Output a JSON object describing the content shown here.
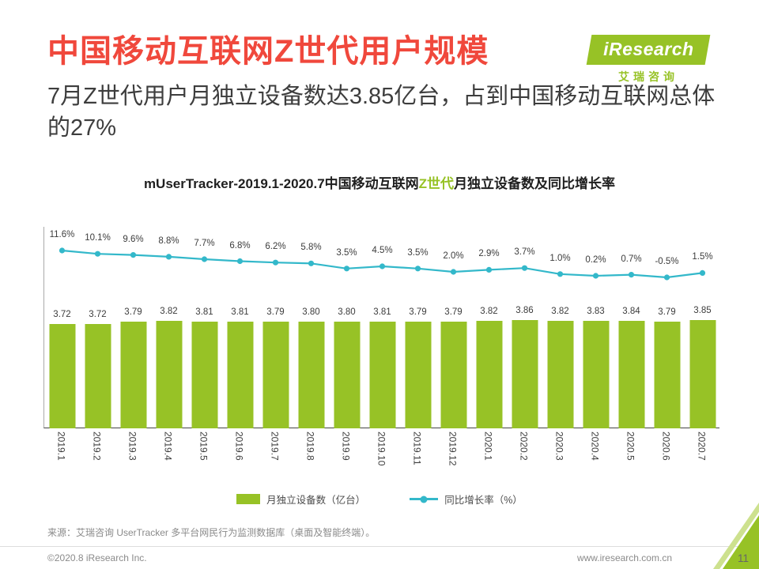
{
  "header": {
    "title": "中国移动互联网Z世代用户规模",
    "subtitle": "7月Z世代用户月独立设备数达3.85亿台，占到中国移动互联网总体的27%"
  },
  "logo": {
    "name": "iResearch",
    "cn": "艾瑞咨询"
  },
  "colors": {
    "title_red": "#F0483C",
    "bar_green": "#97C226",
    "line_teal": "#33B8CA"
  },
  "chart_data": {
    "type": "bar",
    "subtype": "bar+line combo",
    "title_prefix": "mUserTracker-2019.1-2020.7中国移动互联网",
    "title_highlight": "Z世代",
    "title_suffix": "月独立设备数及同比增长率",
    "categories": [
      "2019.1",
      "2019.2",
      "2019.3",
      "2019.4",
      "2019.5",
      "2019.6",
      "2019.7",
      "2019.8",
      "2019.9",
      "2019.10",
      "2019.11",
      "2019.12",
      "2020.1",
      "2020.2",
      "2020.3",
      "2020.4",
      "2020.5",
      "2020.6",
      "2020.7"
    ],
    "series": [
      {
        "name": "月独立设备数（亿台）",
        "type": "bar",
        "color": "#97C226",
        "values": [
          3.72,
          3.72,
          3.79,
          3.82,
          3.81,
          3.81,
          3.79,
          3.8,
          3.8,
          3.81,
          3.79,
          3.79,
          3.82,
          3.86,
          3.82,
          3.83,
          3.84,
          3.79,
          3.85
        ]
      },
      {
        "name": "同比增长率（%）",
        "type": "line",
        "color": "#33B8CA",
        "values": [
          11.6,
          10.1,
          9.6,
          8.8,
          7.7,
          6.8,
          6.2,
          5.8,
          3.5,
          4.5,
          3.5,
          2.0,
          2.9,
          3.7,
          1.0,
          0.2,
          0.7,
          -0.5,
          1.5
        ]
      }
    ],
    "bar_ylim": [
      0,
      4
    ],
    "line_ylim": [
      -1,
      13
    ],
    "grid": false,
    "legend_position": "bottom",
    "data_labels": true
  },
  "footer": {
    "source": "来源：艾瑞咨询 UserTracker 多平台网民行为监测数据库（桌面及智能终端）。",
    "copyright": "©2020.8 iResearch Inc.",
    "url": "www.iresearch.com.cn",
    "page": "11"
  }
}
